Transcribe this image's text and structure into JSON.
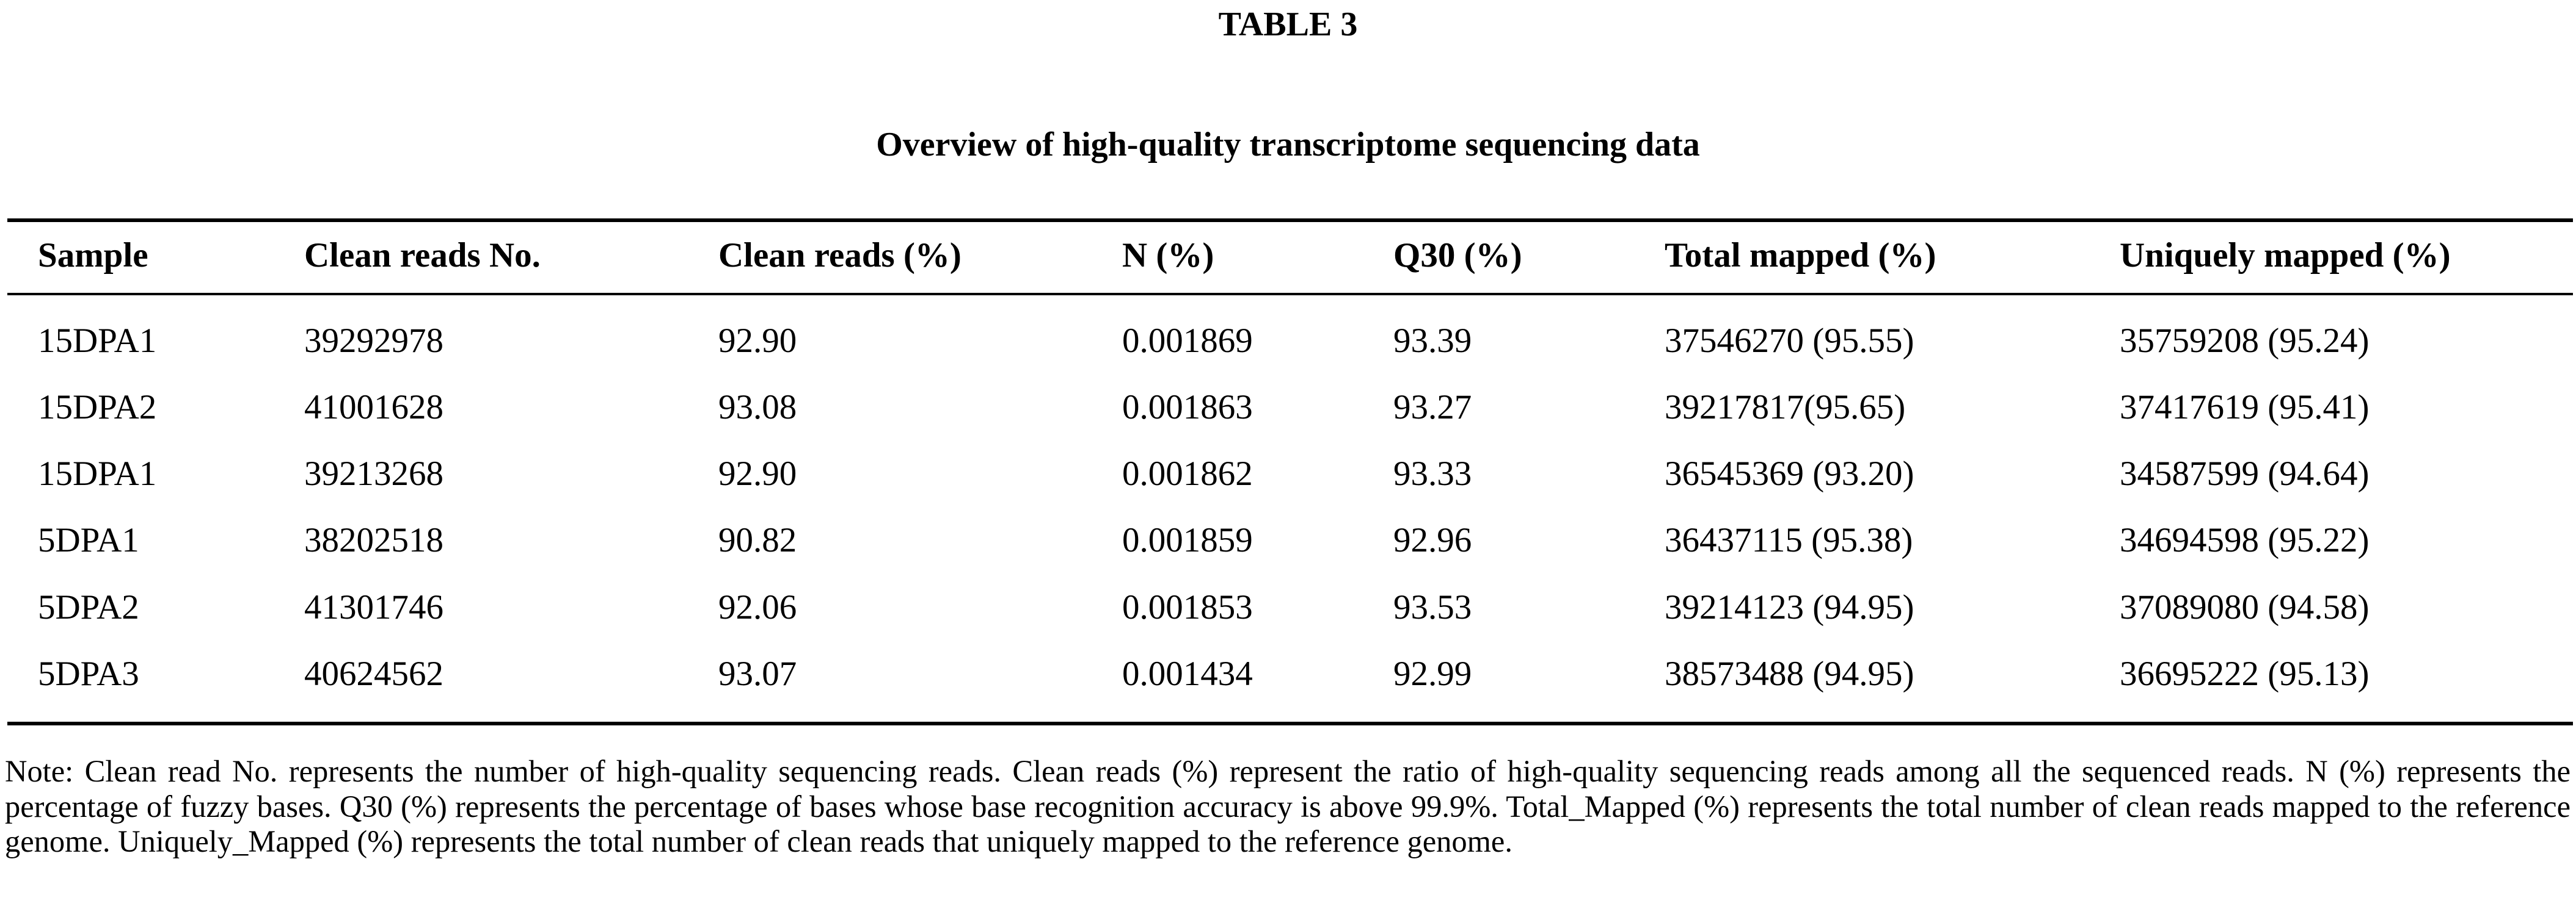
{
  "table_label": "TABLE 3",
  "caption": "Overview of high-quality transcriptome sequencing data",
  "columns": [
    "Sample",
    "Clean reads No.",
    "Clean reads (%)",
    "N (%)",
    "Q30 (%)",
    "Total mapped (%)",
    "Uniquely mapped (%)"
  ],
  "rows": [
    [
      "15DPA1",
      "39292978",
      "92.90",
      "0.001869",
      "93.39",
      "37546270 (95.55)",
      "35759208 (95.24)"
    ],
    [
      "15DPA2",
      "41001628",
      "93.08",
      "0.001863",
      "93.27",
      "39217817(95.65)",
      "37417619 (95.41)"
    ],
    [
      "15DPA1",
      "39213268",
      "92.90",
      "0.001862",
      "93.33",
      "36545369 (93.20)",
      "34587599 (94.64)"
    ],
    [
      "5DPA1",
      "38202518",
      "90.82",
      "0.001859",
      "92.96",
      "36437115 (95.38)",
      "34694598 (95.22)"
    ],
    [
      "5DPA2",
      "41301746",
      "92.06",
      "0.001853",
      "93.53",
      "39214123 (94.95)",
      "37089080 (94.58)"
    ],
    [
      "5DPA3",
      "40624562",
      "93.07",
      "0.001434",
      "92.99",
      "38573488 (94.95)",
      "36695222 (95.13)"
    ]
  ],
  "note": "Note: Clean read No. represents the number of high-quality sequencing reads. Clean reads (%) represent the ratio of high-quality sequencing reads among all the sequenced reads. N (%) represents the percentage of fuzzy bases. Q30 (%) represents the percentage of bases whose base recognition accuracy is above 99.9%. Total_Mapped (%) represents the total number of clean reads mapped to the reference genome. Uniquely_Mapped (%) represents the total number of clean reads that uniquely mapped to the reference genome."
}
